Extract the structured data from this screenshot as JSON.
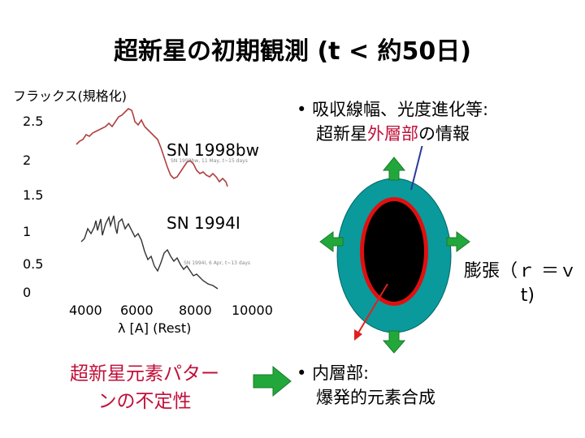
{
  "title": "超新星の初期観測 (t < 約50日)",
  "graph": {
    "ylabel": "フラックス(規格化)",
    "yticks": [
      "2.5",
      "2",
      "1.5",
      "1",
      "0.5",
      "0"
    ],
    "xticks": [
      "4000",
      "6000",
      "8000",
      "10000"
    ],
    "xlabel": "λ [A] (Rest)",
    "spectrum_top_label": "SN 1998bw",
    "spectrum_bottom_label": "SN 1994I",
    "inset_top_caption": "SN 1998bw, 11 May, t~15 days",
    "inset_bottom_caption": "SN 1994I, 6 Apr, t~13 days",
    "curve_top_color": "#c0103a",
    "curve_bottom_color": "#222222"
  },
  "left_caption": {
    "line1": "超新星元素パター",
    "line2": "ンの不定性",
    "color": "#c0103a"
  },
  "arrow_color": "#22a83a",
  "bullet_top": {
    "line1": "吸収線幅、光度進化等:",
    "line2_pre": "超新星",
    "line2_hl": "外層部",
    "line2_post": "の情報"
  },
  "expansion_label": {
    "line1": "膨張（ｒ ＝ｖ",
    "line2": "t)"
  },
  "bullet_bottom": {
    "line1": "内層部:",
    "line2": "爆発的元素合成"
  },
  "diagram_colors": {
    "outer": "#0a9a9c",
    "ring": "#e01010",
    "core": "#000000",
    "arrow_outer": "#2a3a9a",
    "arrow_inner": "#e02020"
  }
}
